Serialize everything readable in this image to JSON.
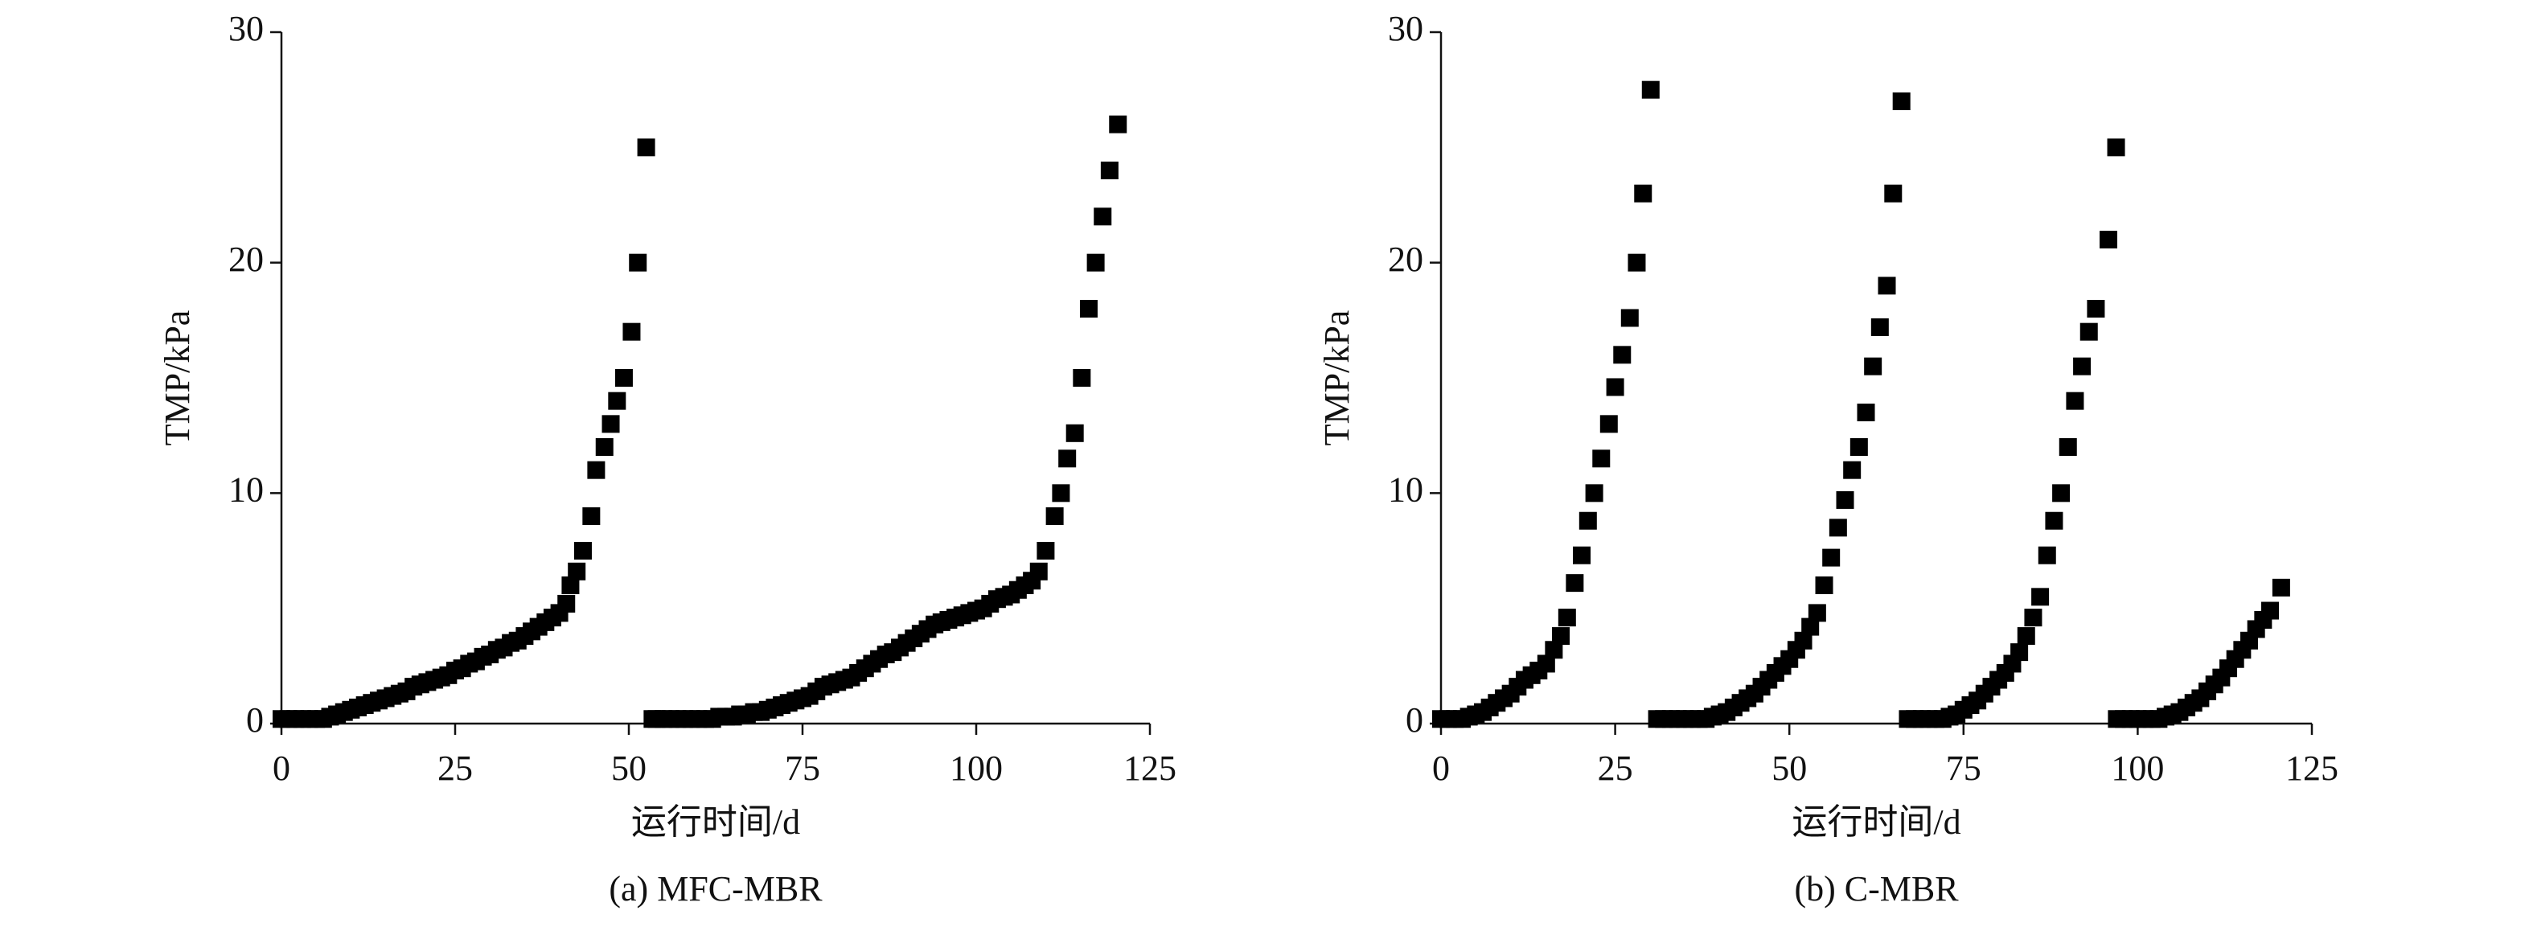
{
  "chart_data": [
    {
      "type": "scatter",
      "caption": "(a) MFC-MBR",
      "x_label": "运行时间/d",
      "y_label": "TMP/kPa",
      "color": "#000000",
      "xlim": [
        0,
        125
      ],
      "ylim": [
        0,
        30
      ],
      "xticks": [
        0,
        25,
        50,
        75,
        100,
        125
      ],
      "yticks": [
        0,
        10,
        20,
        30
      ],
      "x": [
        0,
        1,
        2,
        3,
        4,
        5,
        6,
        7,
        8,
        9,
        10,
        11,
        12,
        13,
        14,
        15,
        16,
        17,
        18,
        19,
        20,
        21,
        22,
        23,
        24,
        25,
        26,
        27,
        28,
        29,
        30,
        31,
        32,
        33,
        34,
        35,
        36,
        37,
        38,
        39,
        40,
        41,
        41.6,
        42.5,
        43.4,
        44.6,
        45.3,
        46.5,
        47.4,
        48.3,
        49.3,
        50.4,
        51.3,
        52.5,
        53.4,
        54,
        55,
        56,
        57,
        58,
        59,
        60,
        61,
        62,
        63,
        64,
        65,
        66,
        67,
        68,
        69,
        70,
        71,
        72,
        73,
        74,
        75,
        76,
        77,
        78,
        79,
        80,
        81,
        82,
        83,
        84,
        85,
        86,
        87,
        88,
        89,
        90,
        91,
        92,
        93,
        94,
        95,
        96,
        97,
        98,
        99,
        100,
        101,
        102,
        103,
        104,
        105,
        106,
        107,
        108,
        109,
        110,
        111.3,
        112.2,
        113.1,
        114.2,
        115.2,
        116.2,
        117.2,
        118.2,
        119.2,
        120.4
      ],
      "values": [
        0.2,
        0.2,
        0.2,
        0.2,
        0.2,
        0.2,
        0.2,
        0.3,
        0.4,
        0.5,
        0.6,
        0.7,
        0.8,
        0.9,
        1.0,
        1.1,
        1.2,
        1.3,
        1.4,
        1.6,
        1.7,
        1.8,
        1.9,
        2.0,
        2.1,
        2.3,
        2.4,
        2.6,
        2.7,
        2.9,
        3.0,
        3.2,
        3.3,
        3.5,
        3.6,
        3.8,
        4.0,
        4.2,
        4.4,
        4.6,
        4.8,
        5.2,
        6.0,
        6.6,
        7.5,
        9.0,
        11,
        12,
        13,
        14,
        15,
        17,
        20,
        25,
        0.2,
        0.2,
        0.2,
        0.2,
        0.2,
        0.2,
        0.2,
        0.2,
        0.2,
        0.2,
        0.3,
        0.3,
        0.3,
        0.4,
        0.4,
        0.5,
        0.5,
        0.6,
        0.7,
        0.8,
        0.9,
        1.0,
        1.1,
        1.2,
        1.4,
        1.6,
        1.7,
        1.8,
        1.9,
        2.0,
        2.2,
        2.4,
        2.6,
        2.8,
        3.0,
        3.1,
        3.3,
        3.5,
        3.7,
        3.9,
        4.1,
        4.3,
        4.4,
        4.5,
        4.6,
        4.7,
        4.8,
        4.9,
        5.0,
        5.2,
        5.4,
        5.5,
        5.6,
        5.8,
        6.0,
        6.2,
        6.6,
        7.5,
        9.0,
        10,
        11.5,
        12.6,
        15,
        18,
        20,
        22,
        24,
        26
      ]
    },
    {
      "type": "scatter",
      "caption": "(b) C-MBR",
      "x_label": "运行时间/d",
      "y_label": "TMP/kPa",
      "color": "#000000",
      "xlim": [
        0,
        125
      ],
      "ylim": [
        0,
        30
      ],
      "xticks": [
        0,
        25,
        50,
        75,
        100,
        125
      ],
      "yticks": [
        0,
        10,
        20,
        30
      ],
      "x": [
        0,
        1,
        2,
        3,
        4,
        5,
        6,
        7,
        8,
        9,
        10,
        11,
        12,
        13,
        14,
        15.1,
        16.2,
        17.2,
        18.1,
        19.2,
        20.2,
        21.1,
        22,
        23,
        24.1,
        25,
        26,
        27.1,
        28.1,
        29,
        30.1,
        31,
        32,
        33,
        34,
        35,
        36,
        37,
        38,
        39,
        40,
        41,
        42,
        43,
        44,
        45,
        46,
        47,
        48,
        49,
        50,
        51,
        52,
        53,
        54,
        55,
        56,
        57,
        58,
        59,
        60,
        61,
        62,
        63,
        64,
        64.9,
        66.1,
        67,
        68,
        69,
        70,
        71,
        72,
        73,
        74,
        75,
        76,
        77,
        78,
        79,
        80,
        81,
        82,
        83,
        84,
        85,
        86,
        87,
        88,
        89,
        90,
        91,
        92,
        93,
        94,
        95.8,
        96.9,
        97,
        98,
        99,
        100,
        101,
        102,
        103,
        104,
        105,
        106,
        107,
        108,
        109,
        110,
        111,
        112,
        113,
        114,
        115,
        116,
        117,
        118,
        119,
        120.6
      ],
      "values": [
        0.2,
        0.2,
        0.2,
        0.2,
        0.3,
        0.4,
        0.5,
        0.7,
        0.9,
        1.1,
        1.3,
        1.6,
        1.9,
        2.1,
        2.3,
        2.6,
        3.2,
        3.8,
        4.6,
        6.1,
        7.3,
        8.8,
        10,
        11.5,
        13,
        14.6,
        16,
        17.6,
        20,
        23,
        27.5,
        0.2,
        0.2,
        0.2,
        0.2,
        0.2,
        0.2,
        0.2,
        0.2,
        0.3,
        0.4,
        0.5,
        0.7,
        0.9,
        1.1,
        1.3,
        1.6,
        1.9,
        2.2,
        2.5,
        2.8,
        3.2,
        3.6,
        4.2,
        4.8,
        6.0,
        7.2,
        8.5,
        9.7,
        11,
        12,
        13.5,
        15.5,
        17.2,
        19,
        23,
        27,
        0.2,
        0.2,
        0.2,
        0.2,
        0.2,
        0.2,
        0.3,
        0.4,
        0.6,
        0.8,
        1.0,
        1.3,
        1.6,
        1.9,
        2.2,
        2.6,
        3.1,
        3.8,
        4.6,
        5.5,
        7.3,
        8.8,
        10,
        12,
        14,
        15.5,
        17,
        18,
        21,
        25,
        0.2,
        0.2,
        0.2,
        0.2,
        0.2,
        0.2,
        0.2,
        0.3,
        0.4,
        0.5,
        0.7,
        0.9,
        1.1,
        1.4,
        1.7,
        2.0,
        2.4,
        2.8,
        3.2,
        3.6,
        4.1,
        4.5,
        4.9,
        5.9
      ]
    }
  ]
}
